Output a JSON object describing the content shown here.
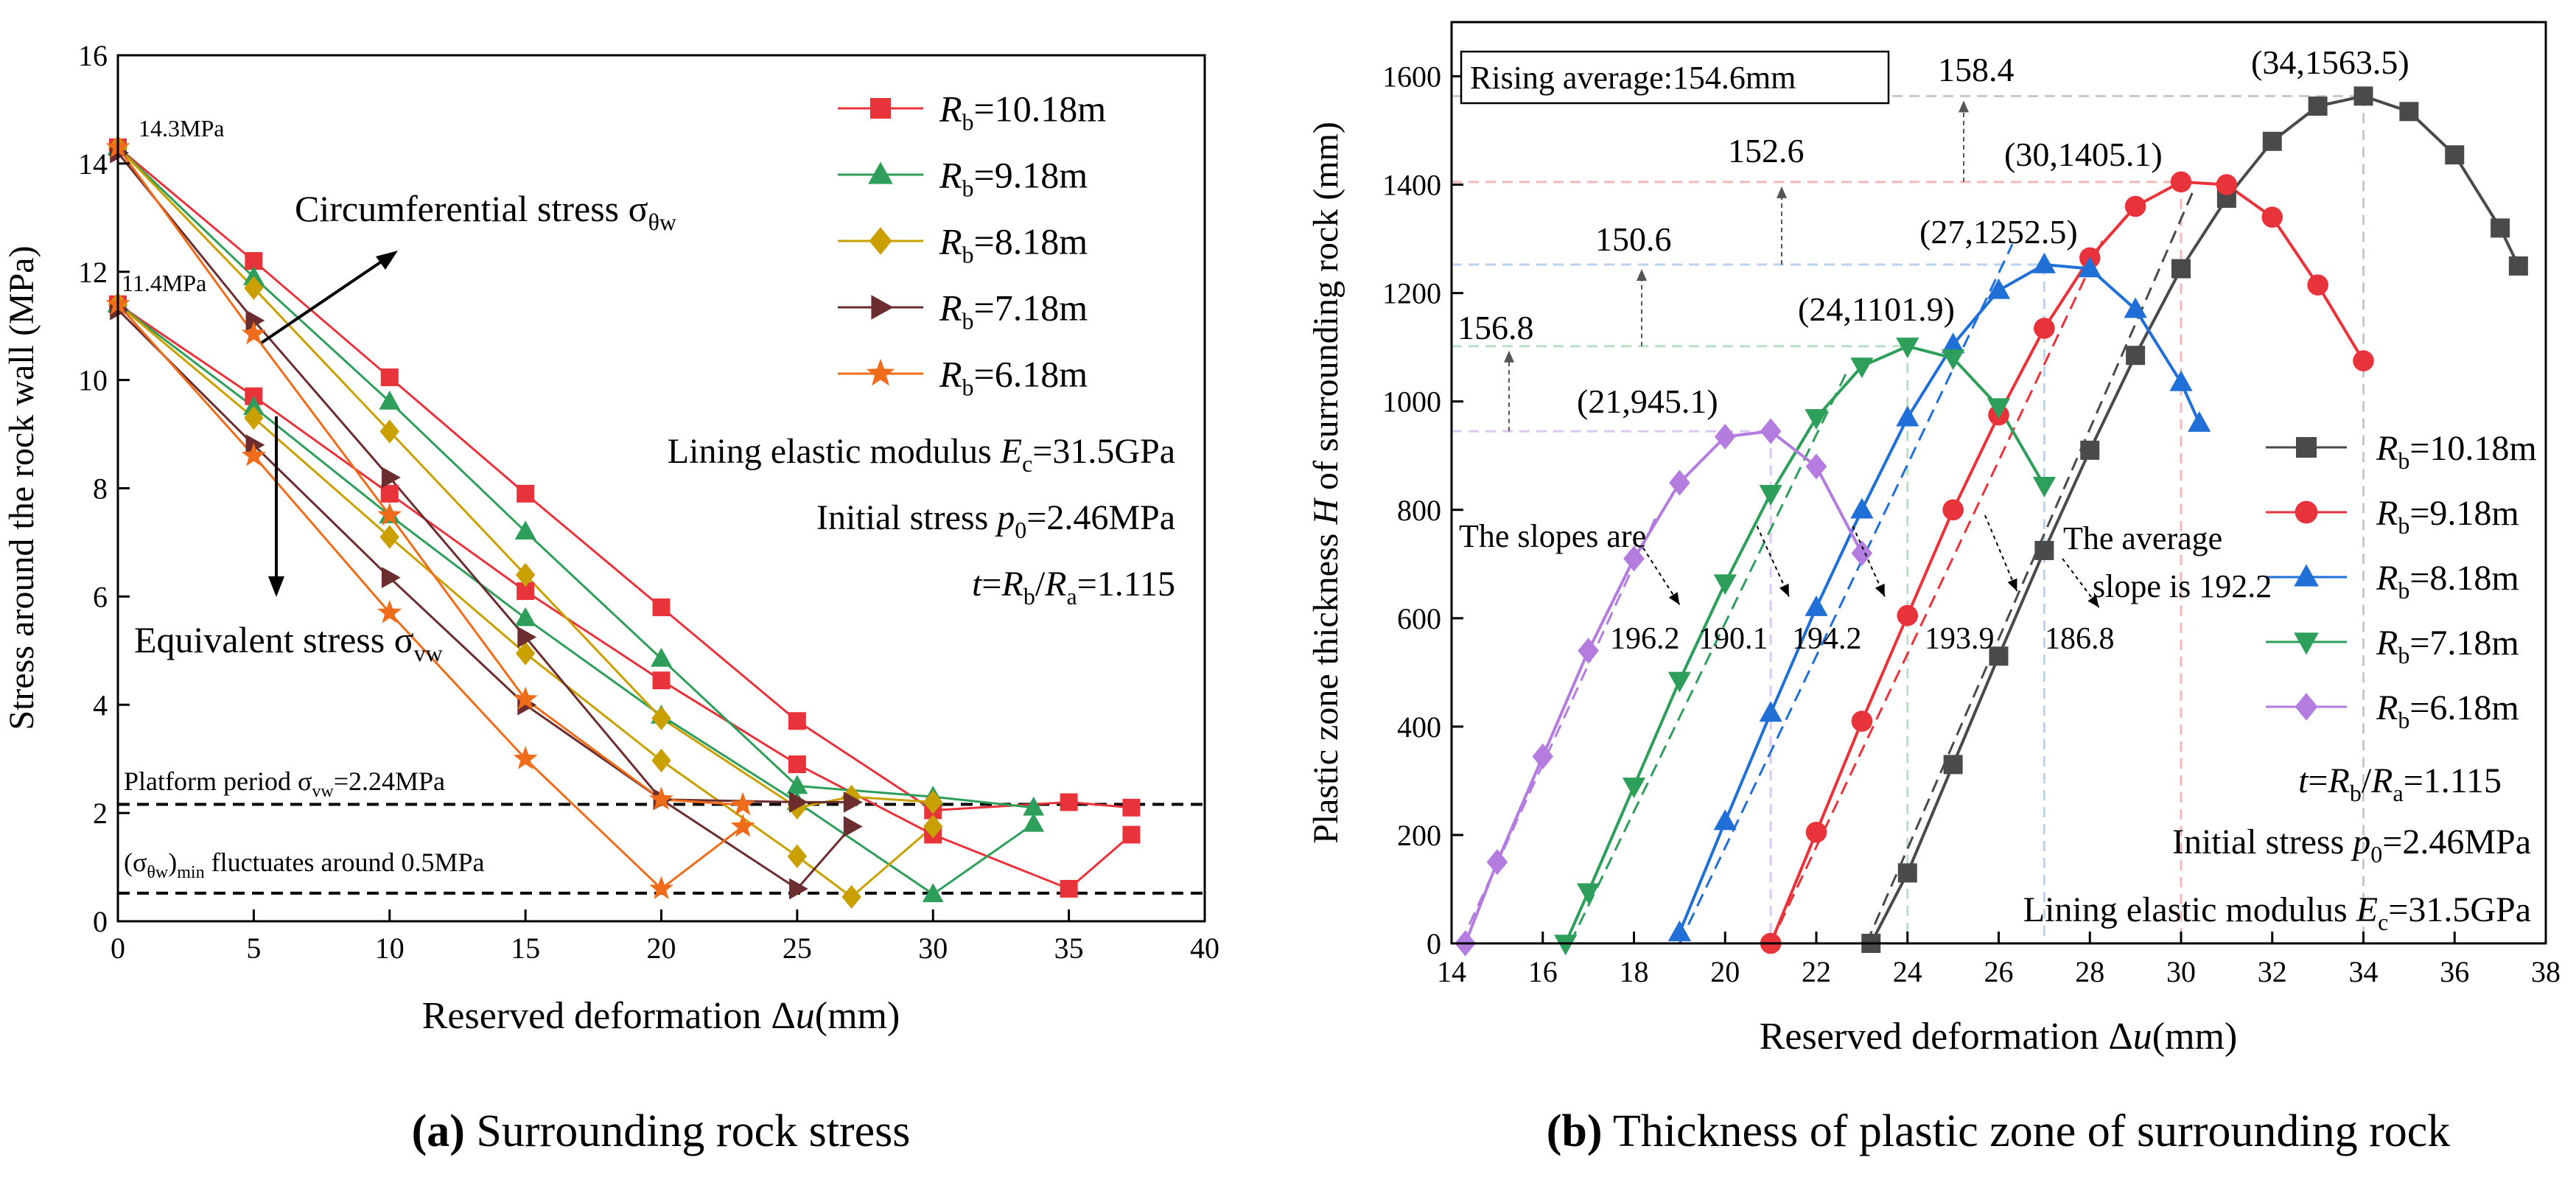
{
  "chart_data": [
    {
      "type": "line",
      "caption_label": "(a)",
      "caption_text": "Surrounding rock stress",
      "xlabel_prefix": "Reserved deformation Δ",
      "xlabel_var": "u",
      "xlabel_unit": "(mm)",
      "ylabel": "Stress around the rock wall (MPa)",
      "xlim": [
        0,
        40
      ],
      "ylim": [
        0,
        16
      ],
      "xticks": [
        0,
        5,
        10,
        15,
        20,
        25,
        30,
        35,
        40
      ],
      "yticks": [
        0,
        2,
        4,
        6,
        8,
        10,
        12,
        14,
        16
      ],
      "grid": false,
      "legend_position": "top-right",
      "series": [
        {
          "name": "Rb=10.18m",
          "legend_var": "R",
          "legend_sub": "b",
          "legend_val": "=10.18m",
          "color": "#e8333b",
          "marker": "square",
          "circ": [
            [
              0,
              14.3
            ],
            [
              5,
              12.2
            ],
            [
              10,
              10.05
            ],
            [
              15,
              7.9
            ],
            [
              20,
              5.8
            ],
            [
              25,
              3.7
            ],
            [
              30,
              2.05
            ],
            [
              35,
              2.2
            ],
            [
              37.3,
              2.1
            ]
          ],
          "equiv": [
            [
              0,
              11.4
            ],
            [
              5,
              9.7
            ],
            [
              10,
              7.9
            ],
            [
              15,
              6.1
            ],
            [
              20,
              4.45
            ],
            [
              25,
              2.9
            ],
            [
              30,
              1.6
            ],
            [
              35,
              0.6
            ],
            [
              37.3,
              1.6
            ]
          ]
        },
        {
          "name": "Rb=9.18m",
          "legend_var": "R",
          "legend_sub": "b",
          "legend_val": "=9.18m",
          "color": "#2e9e5b",
          "marker": "triangle-up",
          "circ": [
            [
              0,
              14.3
            ],
            [
              5,
              11.9
            ],
            [
              10,
              9.6
            ],
            [
              15,
              7.2
            ],
            [
              20,
              4.85
            ],
            [
              25,
              2.5
            ],
            [
              30,
              2.3
            ],
            [
              33.7,
              2.1
            ]
          ],
          "equiv": [
            [
              0,
              11.4
            ],
            [
              5,
              9.5
            ],
            [
              10,
              7.5
            ],
            [
              15,
              5.6
            ],
            [
              20,
              3.8
            ],
            [
              25,
              2.2
            ],
            [
              30,
              0.5
            ],
            [
              33.7,
              1.8
            ]
          ]
        },
        {
          "name": "Rb=8.18m",
          "legend_var": "R",
          "legend_sub": "b",
          "legend_val": "=8.18m",
          "color": "#c9a000",
          "marker": "diamond",
          "circ": [
            [
              0,
              14.3
            ],
            [
              5,
              11.7
            ],
            [
              10,
              9.05
            ],
            [
              15,
              6.4
            ],
            [
              20,
              3.75
            ],
            [
              25,
              2.1
            ],
            [
              27,
              2.3
            ],
            [
              30,
              2.2
            ]
          ],
          "equiv": [
            [
              0,
              11.4
            ],
            [
              5,
              9.3
            ],
            [
              10,
              7.1
            ],
            [
              15,
              4.95
            ],
            [
              20,
              2.97
            ],
            [
              25,
              1.2
            ],
            [
              27,
              0.45
            ],
            [
              30,
              1.75
            ]
          ]
        },
        {
          "name": "Rb=7.18m",
          "legend_var": "R",
          "legend_sub": "b",
          "legend_val": "=7.18m",
          "color": "#6b2d2d",
          "marker": "triangle-right",
          "circ": [
            [
              0,
              14.2
            ],
            [
              5,
              11.1
            ],
            [
              10,
              8.2
            ],
            [
              15,
              5.25
            ],
            [
              20,
              2.25
            ],
            [
              25,
              2.2
            ],
            [
              27,
              2.2
            ]
          ],
          "equiv": [
            [
              0,
              11.3
            ],
            [
              5,
              8.8
            ],
            [
              10,
              6.35
            ],
            [
              15,
              4.0
            ],
            [
              20,
              2.25
            ],
            [
              25,
              0.6
            ],
            [
              27,
              1.75
            ]
          ]
        },
        {
          "name": "Rb=6.18m",
          "legend_var": "R",
          "legend_sub": "b",
          "legend_val": "=6.18m",
          "color": "#ef6c1a",
          "marker": "star",
          "circ": [
            [
              0,
              14.3
            ],
            [
              5,
              10.85
            ],
            [
              10,
              7.5
            ],
            [
              15,
              4.1
            ],
            [
              20,
              2.25
            ],
            [
              23,
              2.15
            ]
          ],
          "equiv": [
            [
              0,
              11.4
            ],
            [
              5,
              8.6
            ],
            [
              10,
              5.7
            ],
            [
              15,
              3.0
            ],
            [
              20,
              0.6
            ],
            [
              23,
              1.75
            ]
          ]
        }
      ],
      "hlines": [
        2.16,
        0.52
      ],
      "annotations": {
        "p1": "14.3MPa",
        "p2": "11.4MPa",
        "circ_label": "Circumferential stress σ",
        "circ_sub": "θw",
        "equiv_label": "Equivalent stress σ",
        "equiv_sub": "vw",
        "lining_pre": "Lining elastic modulus ",
        "lining_var": "E",
        "lining_sub": "c",
        "lining_val": "=31.5GPa",
        "initial_pre": "Initial stress ",
        "initial_var": "p",
        "initial_sub": "0",
        "initial_val": "=2.46MPa",
        "t_var": "t",
        "t_eq": "=",
        "t_rb": "R",
        "t_rb_sub": "b",
        "t_slash": "/",
        "t_ra": "R",
        "t_ra_sub": "a",
        "t_val": "=1.115",
        "platform_pre": "Platform period σ",
        "platform_sub": "vw",
        "platform_val": "=2.24MPa",
        "fluct_open": "(σ",
        "fluct_sub": "θw",
        "fluct_close": ")",
        "fluct_min": "min",
        "fluct_rest": " fluctuates around 0.5MPa"
      }
    },
    {
      "type": "line",
      "caption_label": "(b)",
      "caption_text": "Thickness of plastic zone of surrounding rock",
      "xlabel_prefix": "Reserved deformation Δ",
      "xlabel_var": "u",
      "xlabel_unit": "(mm)",
      "ylabel_pre": "Plastic zone thickness ",
      "ylabel_var": "H",
      "ylabel_post": " of surrounding rock (mm)",
      "xlim": [
        14,
        38
      ],
      "ylim": [
        0,
        1700
      ],
      "xticks": [
        14,
        16,
        18,
        20,
        22,
        24,
        26,
        28,
        30,
        32,
        34,
        36,
        38
      ],
      "yticks": [
        0,
        200,
        400,
        600,
        800,
        1000,
        1200,
        1400,
        1600
      ],
      "grid": false,
      "legend_position": "right",
      "series": [
        {
          "name": "Rb=10.18m",
          "legend_var": "R",
          "legend_sub": "b",
          "legend_val": "=10.18m",
          "color": "#4a4a4a",
          "marker": "square",
          "x": [
            23.2,
            24,
            25,
            26,
            27,
            28,
            29,
            30,
            31,
            32,
            33,
            34,
            35,
            36,
            37,
            37.4
          ],
          "y": [
            0,
            130,
            330,
            530,
            725,
            910,
            1085,
            1245,
            1375,
            1480,
            1545,
            1563.5,
            1535,
            1455,
            1320,
            1250
          ]
        },
        {
          "name": "Rb=9.18m",
          "legend_var": "R",
          "legend_sub": "b",
          "legend_val": "=9.18m",
          "color": "#e8333b",
          "marker": "circle",
          "x": [
            21,
            22,
            23,
            24,
            25,
            26,
            27,
            28,
            29,
            30,
            31,
            32,
            33,
            34
          ],
          "y": [
            0,
            205,
            410,
            605,
            800,
            975,
            1135,
            1265,
            1360,
            1405.1,
            1400,
            1340,
            1215,
            1075
          ]
        },
        {
          "name": "Rb=8.18m",
          "legend_var": "R",
          "legend_sub": "b",
          "legend_val": "=8.18m",
          "color": "#1f6fd6",
          "marker": "triangle-up",
          "x": [
            19,
            20,
            21,
            22,
            23,
            24,
            25,
            26,
            27,
            28,
            29,
            30,
            30.4
          ],
          "y": [
            20,
            225,
            425,
            620,
            800,
            970,
            1105,
            1205,
            1252.5,
            1245,
            1170,
            1035,
            960
          ]
        },
        {
          "name": "Rb=7.18m",
          "legend_var": "R",
          "legend_sub": "b",
          "legend_val": "=7.18m",
          "color": "#2e9e5b",
          "marker": "triangle-down",
          "x": [
            16.5,
            17,
            18,
            19,
            20,
            21,
            22,
            23,
            24,
            25,
            26,
            27
          ],
          "y": [
            0,
            95,
            290,
            485,
            665,
            830,
            970,
            1065,
            1101.9,
            1080,
            990,
            845
          ]
        },
        {
          "name": "Rb=6.18m",
          "legend_var": "R",
          "legend_sub": "b",
          "legend_val": "=6.18m",
          "color": "#b57ce0",
          "marker": "diamond",
          "x": [
            14.3,
            15,
            16,
            17,
            18,
            19,
            20,
            21,
            22,
            23
          ],
          "y": [
            0,
            150,
            345,
            540,
            710,
            850,
            935,
            945.1,
            880,
            720
          ]
        }
      ],
      "peak_labels": [
        "(34,1563.5)",
        "(30,1405.1)",
        "(27,1252.5)",
        "(24,1101.9)",
        "(21,945.1)"
      ],
      "rise_labels": [
        "158.4",
        "152.6",
        "150.6",
        "156.8"
      ],
      "slope_labels": [
        "196.2",
        "190.1",
        "194.2",
        "193.9",
        "186.8"
      ],
      "annotations": {
        "rising_avg": "Rising average:154.6mm",
        "slopes_are": "The slopes are",
        "avg_slope_1": "The average",
        "avg_slope_2": "slope is 192.2",
        "t_var": "t",
        "t_eq": "=",
        "t_rb": "R",
        "t_rb_sub": "b",
        "t_slash": "/",
        "t_ra": "R",
        "t_ra_sub": "a",
        "t_val": "=1.115",
        "initial_pre": "Initial stress ",
        "initial_var": "p",
        "initial_sub": "0",
        "initial_val": "=2.46MPa",
        "lining_pre": "Lining elastic modulus ",
        "lining_var": "E",
        "lining_sub": "c",
        "lining_val": "=31.5GPa"
      }
    }
  ]
}
